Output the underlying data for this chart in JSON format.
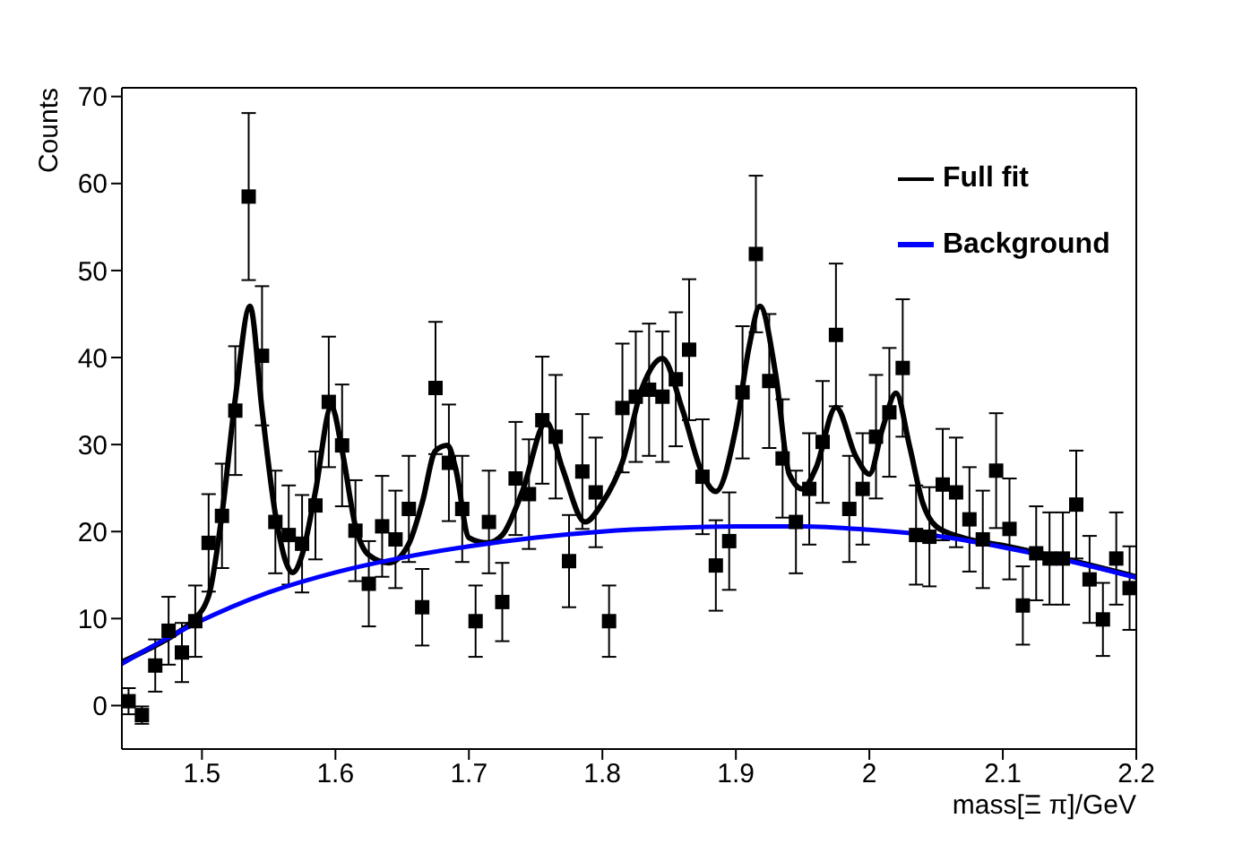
{
  "chart_data": {
    "type": "scatter",
    "xlabel": "mass[Ξ π]/GeV",
    "ylabel": "Counts",
    "xlim": [
      1.44,
      2.2
    ],
    "xticks": [
      1.5,
      1.6,
      1.7,
      1.8,
      1.9,
      2,
      2.1,
      2.2
    ],
    "ylim": [
      -5,
      71
    ],
    "yticks": [
      0,
      10,
      20,
      30,
      40,
      50,
      60,
      70
    ],
    "legend": "top right",
    "x": [
      1.445,
      1.455,
      1.465,
      1.475,
      1.485,
      1.495,
      1.505,
      1.515,
      1.525,
      1.535,
      1.545,
      1.555,
      1.565,
      1.575,
      1.585,
      1.595,
      1.605,
      1.615,
      1.625,
      1.635,
      1.645,
      1.655,
      1.665,
      1.675,
      1.685,
      1.695,
      1.705,
      1.715,
      1.725,
      1.735,
      1.745,
      1.755,
      1.765,
      1.775,
      1.785,
      1.795,
      1.805,
      1.815,
      1.825,
      1.835,
      1.845,
      1.855,
      1.865,
      1.875,
      1.885,
      1.895,
      1.905,
      1.915,
      1.925,
      1.935,
      1.945,
      1.955,
      1.965,
      1.975,
      1.985,
      1.995,
      2.005,
      2.015,
      2.025,
      2.035,
      2.045,
      2.055,
      2.065,
      2.075,
      2.085,
      2.095,
      2.105,
      2.115,
      2.125,
      2.135,
      2.145,
      2.155,
      2.165,
      2.175,
      2.185,
      2.195
    ],
    "series": [
      {
        "color": "#000000",
        "marker": "square",
        "values": [
          0.5,
          -1.1,
          4.6,
          8.6,
          6.1,
          9.7,
          18.7,
          21.8,
          33.9,
          58.5,
          40.2,
          21.1,
          19.6,
          18.6,
          23,
          34.9,
          29.9,
          20.1,
          14,
          20.6,
          19.1,
          22.6,
          11.3,
          36.5,
          27.9,
          22.6,
          9.7,
          21.1,
          11.9,
          26.1,
          24.3,
          32.8,
          30.9,
          16.6,
          26.9,
          24.5,
          9.7,
          34.2,
          35.5,
          36.3,
          35.5,
          37.5,
          40.9,
          26.3,
          16.1,
          18.9,
          36,
          51.9,
          37.3,
          28.4,
          21.1,
          24.9,
          30.3,
          42.6,
          22.6,
          24.9,
          30.9,
          33.7,
          38.8,
          19.6,
          19.4,
          25.4,
          24.5,
          21.4,
          19.1,
          27,
          20.3,
          11.5,
          17.5,
          16.9,
          16.9,
          23.1,
          14.5,
          9.9,
          16.9,
          13.5
        ],
        "errors": [
          1.5,
          1,
          3,
          3.9,
          3.4,
          4.1,
          5.6,
          6,
          7.4,
          9.6,
          8,
          5.9,
          5.7,
          5.6,
          6.2,
          7.5,
          7,
          5.8,
          4.9,
          5.8,
          5.6,
          6.1,
          4.4,
          7.6,
          6.7,
          6.1,
          4.1,
          5.9,
          4.5,
          6.5,
          6.3,
          7.3,
          7.1,
          5.3,
          6.6,
          6.3,
          4.1,
          7.4,
          7.5,
          7.6,
          7.5,
          7.7,
          8.1,
          6.6,
          5.2,
          5.6,
          7.6,
          9,
          7.7,
          6.8,
          5.9,
          6.4,
          7,
          8.2,
          6.1,
          6.4,
          7.1,
          7.4,
          7.9,
          5.7,
          5.7,
          6.4,
          6.3,
          6,
          5.6,
          6.6,
          5.8,
          4.5,
          5.4,
          5.3,
          5.3,
          6.2,
          5,
          4.2,
          5.3,
          4.8
        ]
      },
      {
        "type": "line",
        "name": "Full fit",
        "color": "#000000",
        "line_style": "solid",
        "x": [
          1.44,
          1.46,
          1.48,
          1.492,
          1.505,
          1.515,
          1.525,
          1.536,
          1.545,
          1.555,
          1.568,
          1.575,
          1.585,
          1.597,
          1.605,
          1.615,
          1.625,
          1.64,
          1.655,
          1.665,
          1.675,
          1.684,
          1.69,
          1.7,
          1.714,
          1.725,
          1.74,
          1.758,
          1.77,
          1.787,
          1.8,
          1.815,
          1.83,
          1.845,
          1.86,
          1.875,
          1.885,
          1.9,
          1.91,
          1.918,
          1.93,
          1.94,
          1.95,
          1.96,
          1.975,
          1.99,
          2.0,
          2.01,
          2.02,
          2.03,
          2.04,
          2.05,
          2.07,
          2.1,
          2.15,
          2.2
        ],
        "values": [
          5,
          6.5,
          8.2,
          9.6,
          12.6,
          22,
          35.3,
          45.9,
          34,
          22,
          15.3,
          17.3,
          24.6,
          34.4,
          29.3,
          20.6,
          17.3,
          16.4,
          18.6,
          23.3,
          29.3,
          29.9,
          27.3,
          19.3,
          18.7,
          19.6,
          24.6,
          32.6,
          27.3,
          21.1,
          23.3,
          28,
          36.6,
          39.9,
          34,
          26.6,
          24.6,
          31.9,
          41.3,
          45.9,
          37.9,
          26.6,
          24.9,
          27.3,
          34.3,
          28.6,
          26.6,
          31.9,
          35.9,
          29.9,
          23.3,
          20.6,
          19.3,
          18.4,
          16.7,
          14.8
        ]
      },
      {
        "type": "line",
        "name": "Background",
        "color": "#0000ff",
        "line_style": "solid",
        "x": [
          1.44,
          1.5,
          1.55,
          1.6,
          1.65,
          1.7,
          1.75,
          1.8,
          1.85,
          1.9,
          1.95,
          2.0,
          2.05,
          2.1,
          2.15,
          2.2
        ],
        "values": [
          4.8,
          9.8,
          13,
          15.3,
          17,
          18.3,
          19.3,
          20,
          20.4,
          20.6,
          20.6,
          20.2,
          19.5,
          18.2,
          16.6,
          14.7
        ]
      }
    ]
  }
}
